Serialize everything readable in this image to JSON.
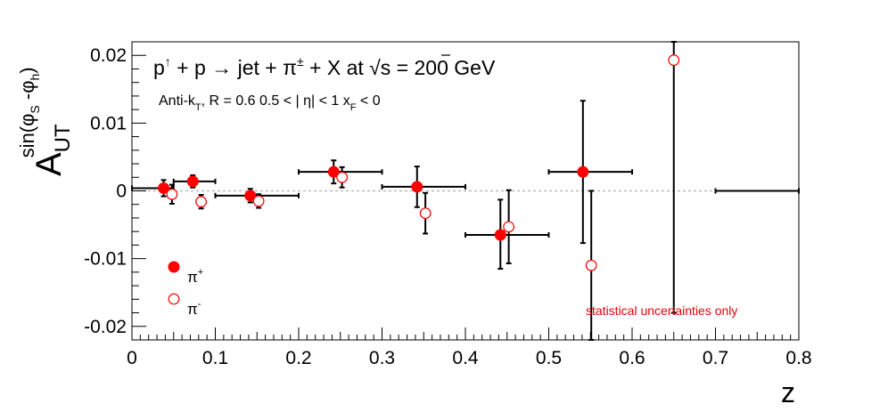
{
  "chart_data": {
    "type": "scatter",
    "title": "p↑ + p → jet + π± + X at √s = 200 GeV",
    "title_parts": {
      "p": "p",
      "up_arrow": "↑",
      "plus_p": " + p ",
      "arrow": "→",
      "jet": " jet + π",
      "pm": "±",
      "rest": " + X at ",
      "sqrt": "√",
      "s_val": "s = 200 GeV"
    },
    "subtitle_parts": {
      "a": "Anti-k",
      "T": "T",
      "b": ", R = 0.6   0.5 < | η| < 1   x",
      "F": "F",
      "c": " < 0"
    },
    "xlabel": "z",
    "ylabel_parts": {
      "main": "A",
      "sub": "UT",
      "sup": "sin(φ",
      "sup_S": "S",
      "sup_mid": " -φ",
      "sup_h": "h",
      "sup_end": ")"
    },
    "xlim": [
      0,
      0.8
    ],
    "ylim": [
      -0.022,
      0.022
    ],
    "x_ticks": [
      0,
      0.1,
      0.2,
      0.3,
      0.4,
      0.5,
      0.6,
      0.7,
      0.8
    ],
    "x_tick_labels": [
      "0",
      "0.1",
      "0.2",
      "0.3",
      "0.4",
      "0.5",
      "0.6",
      "0.7",
      "0.8"
    ],
    "y_ticks": [
      -0.02,
      -0.01,
      0,
      0.01,
      0.02
    ],
    "y_tick_labels": [
      "-0.02",
      "-0.01",
      "0",
      "0.01",
      "0.02"
    ],
    "grid": false,
    "legend_position": "bottom-left",
    "reference_line": 0,
    "annotation": "statistical uncertainties only",
    "annotation_color": "#e8000b",
    "marker_color": "#ff0000",
    "series": [
      {
        "name": "π⁺",
        "label": "π",
        "label_sup": "+",
        "marker": "filled-circle",
        "points": [
          {
            "x": 0.038,
            "y": 0.0004,
            "xlo": 0.0,
            "xhi": 0.05,
            "ylo": -0.0008,
            "yhi": 0.0016
          },
          {
            "x": 0.073,
            "y": 0.0014,
            "xlo": 0.05,
            "xhi": 0.1,
            "ylo": 0.0005,
            "yhi": 0.0023
          },
          {
            "x": 0.142,
            "y": -0.0007,
            "xlo": 0.1,
            "xhi": 0.2,
            "ylo": -0.0017,
            "yhi": 0.0003
          },
          {
            "x": 0.242,
            "y": 0.0028,
            "xlo": 0.2,
            "xhi": 0.3,
            "ylo": 0.0011,
            "yhi": 0.0045
          },
          {
            "x": 0.342,
            "y": 0.0006,
            "xlo": 0.3,
            "xhi": 0.4,
            "ylo": -0.0024,
            "yhi": 0.0036
          },
          {
            "x": 0.442,
            "y": -0.0065,
            "xlo": 0.4,
            "xhi": 0.5,
            "ylo": -0.0115,
            "yhi": -0.0013
          },
          {
            "x": 0.541,
            "y": 0.0028,
            "xlo": 0.5,
            "xhi": 0.6,
            "ylo": -0.0077,
            "yhi": 0.0133
          },
          {
            "x": 0.75,
            "y": 0.0,
            "xlo": 0.7,
            "xhi": 0.8,
            "ylo": 0.0,
            "yhi": 0.0,
            "hide_marker": true
          }
        ]
      },
      {
        "name": "π⁻",
        "label": "π",
        "label_sup": "-",
        "marker": "open-circle",
        "points": [
          {
            "x": 0.048,
            "y": -0.0005,
            "ylo": -0.0019,
            "yhi": 0.0009
          },
          {
            "x": 0.083,
            "y": -0.0016,
            "ylo": -0.0026,
            "yhi": -0.0006
          },
          {
            "x": 0.152,
            "y": -0.0015,
            "ylo": -0.0025,
            "yhi": -0.0005
          },
          {
            "x": 0.252,
            "y": 0.002,
            "ylo": 0.0005,
            "yhi": 0.0035
          },
          {
            "x": 0.352,
            "y": -0.0033,
            "ylo": -0.0063,
            "yhi": -0.0003
          },
          {
            "x": 0.452,
            "y": -0.0053,
            "ylo": -0.0107,
            "yhi": 0.0001
          },
          {
            "x": 0.551,
            "y": -0.011,
            "ylo": -0.022,
            "yhi": 0.0
          },
          {
            "x": 0.65,
            "y": 0.0193,
            "ylo": -0.018,
            "yhi": 0.022
          }
        ]
      }
    ]
  }
}
